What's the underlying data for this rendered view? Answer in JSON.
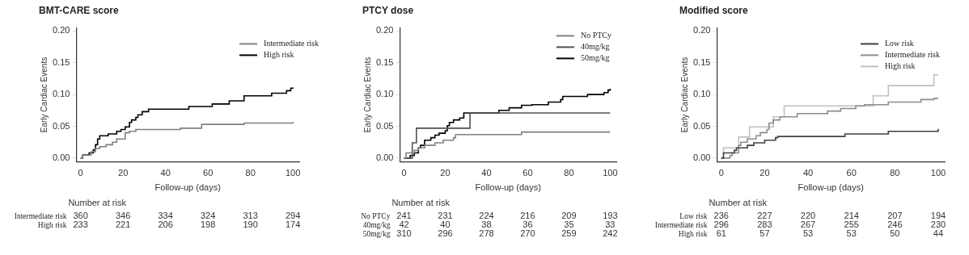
{
  "chart_data": [
    {
      "type": "step",
      "title": "BMT-CARE score",
      "xlabel": "Follow-up (days)",
      "ylabel": "Early Cardiac Events",
      "xlim": [
        -2,
        103
      ],
      "ylim": [
        -0.006,
        0.205
      ],
      "xticks": [
        0,
        20,
        40,
        60,
        80,
        100
      ],
      "yticks": [
        {
          "value": 0,
          "label": "0.00"
        },
        {
          "value": 0.05,
          "label": "0.05"
        },
        {
          "value": 0.1,
          "label": "0.10"
        },
        {
          "value": 0.15,
          "label": "0.15"
        },
        {
          "value": 0.2,
          "label": "0.20"
        }
      ],
      "legend": "top right",
      "series": [
        {
          "name": "Intermediate risk",
          "color": "#808080",
          "x": [
            0,
            1,
            5,
            7,
            9,
            12,
            15,
            17,
            21,
            23,
            26,
            47,
            57,
            77,
            100
          ],
          "values": [
            0,
            0.005,
            0.01,
            0.015,
            0.018,
            0.021,
            0.025,
            0.03,
            0.04,
            0.042,
            0.045,
            0.047,
            0.053,
            0.055,
            0.057
          ]
        },
        {
          "name": "High risk",
          "color": "#000000",
          "x": [
            0,
            1,
            4,
            6,
            7,
            8,
            9,
            13,
            17,
            19,
            21,
            23,
            24,
            26,
            27,
            29,
            32,
            51,
            62,
            70,
            77,
            90,
            97,
            99,
            100
          ],
          "values": [
            0,
            0.005,
            0.008,
            0.013,
            0.021,
            0.03,
            0.035,
            0.038,
            0.042,
            0.045,
            0.049,
            0.056,
            0.06,
            0.064,
            0.068,
            0.073,
            0.077,
            0.081,
            0.085,
            0.09,
            0.098,
            0.102,
            0.106,
            0.11,
            0.111
          ]
        }
      ],
      "annotations": [
        "Number at risk",
        "Intermediate risk",
        "360",
        "346",
        "334",
        "324",
        "313",
        "294",
        "High risk",
        "233",
        "221",
        "206",
        "198",
        "190",
        "174"
      ]
    },
    {
      "type": "step",
      "title": "PTCY dose",
      "xlabel": "Follow-up (days)",
      "ylabel": "Early Cardiac Events",
      "xlim": [
        -2,
        103
      ],
      "ylim": [
        -0.006,
        0.205
      ],
      "xticks": [
        0,
        20,
        40,
        60,
        80,
        100
      ],
      "yticks": [
        {
          "value": 0,
          "label": "0.00"
        },
        {
          "value": 0.05,
          "label": "0.05"
        },
        {
          "value": 0.1,
          "label": "0.10"
        },
        {
          "value": 0.15,
          "label": "0.15"
        },
        {
          "value": 0.2,
          "label": "0.20"
        }
      ],
      "legend": "top right",
      "series": [
        {
          "name": "No PTCy",
          "color": "#808080",
          "x": [
            0,
            1,
            4,
            5,
            7,
            10,
            15,
            19,
            24,
            25,
            57,
            100
          ],
          "values": [
            0,
            0.008,
            0.008,
            0.012,
            0.016,
            0.02,
            0.024,
            0.028,
            0.032,
            0.037,
            0.041,
            0.041
          ]
        },
        {
          "name": "40mg/kg",
          "color": "#505050",
          "x": [
            0,
            4,
            6,
            32,
            100
          ],
          "values": [
            0,
            0.024,
            0.047,
            0.071,
            0.071
          ]
        },
        {
          "name": "50mg/kg",
          "color": "#000000",
          "x": [
            0,
            3,
            5,
            7,
            8,
            10,
            13,
            15,
            17,
            20,
            21,
            22,
            24,
            27,
            29,
            46,
            51,
            57,
            62,
            70,
            76,
            77,
            89,
            97,
            99,
            100
          ],
          "values": [
            0,
            0.004,
            0.008,
            0.016,
            0.02,
            0.028,
            0.032,
            0.036,
            0.039,
            0.043,
            0.051,
            0.056,
            0.06,
            0.063,
            0.071,
            0.075,
            0.079,
            0.083,
            0.084,
            0.088,
            0.092,
            0.097,
            0.1,
            0.103,
            0.107,
            0.109
          ]
        }
      ],
      "annotations": [
        "Number at risk",
        "No PTCy",
        "241",
        "231",
        "224",
        "216",
        "209",
        "193",
        "40mg/kg",
        "42",
        "40",
        "38",
        "36",
        "35",
        "33",
        "50mg/kg",
        "310",
        "296",
        "278",
        "270",
        "259",
        "242"
      ]
    },
    {
      "type": "step",
      "title": "Modified score",
      "xlabel": "Follow-up (days)",
      "ylabel": "Early Cardiac Events",
      "xlim": [
        -2,
        103
      ],
      "ylim": [
        -0.006,
        0.205
      ],
      "xticks": [
        0,
        20,
        40,
        60,
        80,
        100
      ],
      "yticks": [
        {
          "value": 0,
          "label": "0.00"
        },
        {
          "value": 0.05,
          "label": "0.05"
        },
        {
          "value": 0.1,
          "label": "0.10"
        },
        {
          "value": 0.15,
          "label": "0.15"
        },
        {
          "value": 0.2,
          "label": "0.20"
        }
      ],
      "legend": "top right",
      "series": [
        {
          "name": "Low risk",
          "color": "#404040",
          "x": [
            0,
            1,
            5,
            6,
            7,
            12,
            15,
            20,
            25,
            26,
            57,
            77,
            100
          ],
          "values": [
            0,
            0.008,
            0.008,
            0.012,
            0.016,
            0.02,
            0.024,
            0.028,
            0.032,
            0.034,
            0.038,
            0.042,
            0.046
          ]
        },
        {
          "name": "Intermediate risk",
          "color": "#8c8c8c",
          "x": [
            0,
            4,
            5,
            8,
            9,
            12,
            16,
            18,
            21,
            22,
            24,
            27,
            35,
            49,
            55,
            62,
            66,
            77,
            92,
            98,
            100
          ],
          "values": [
            0,
            0.004,
            0.008,
            0.02,
            0.025,
            0.03,
            0.035,
            0.04,
            0.045,
            0.055,
            0.06,
            0.065,
            0.07,
            0.074,
            0.078,
            0.082,
            0.084,
            0.088,
            0.092,
            0.094,
            0.094
          ]
        },
        {
          "name": "High risk",
          "color": "#c0c0c0",
          "x": [
            0,
            1,
            8,
            13,
            24,
            29,
            70,
            77,
            98,
            100
          ],
          "values": [
            0,
            0.016,
            0.033,
            0.049,
            0.065,
            0.082,
            0.098,
            0.114,
            0.131,
            0.131
          ]
        }
      ],
      "annotations": [
        "Number at risk",
        "Low risk",
        "236",
        "227",
        "220",
        "214",
        "207",
        "194",
        "Intermediate risk",
        "296",
        "283",
        "267",
        "255",
        "246",
        "230",
        "High risk",
        "61",
        "57",
        "53",
        "53",
        "50",
        "44"
      ]
    }
  ]
}
